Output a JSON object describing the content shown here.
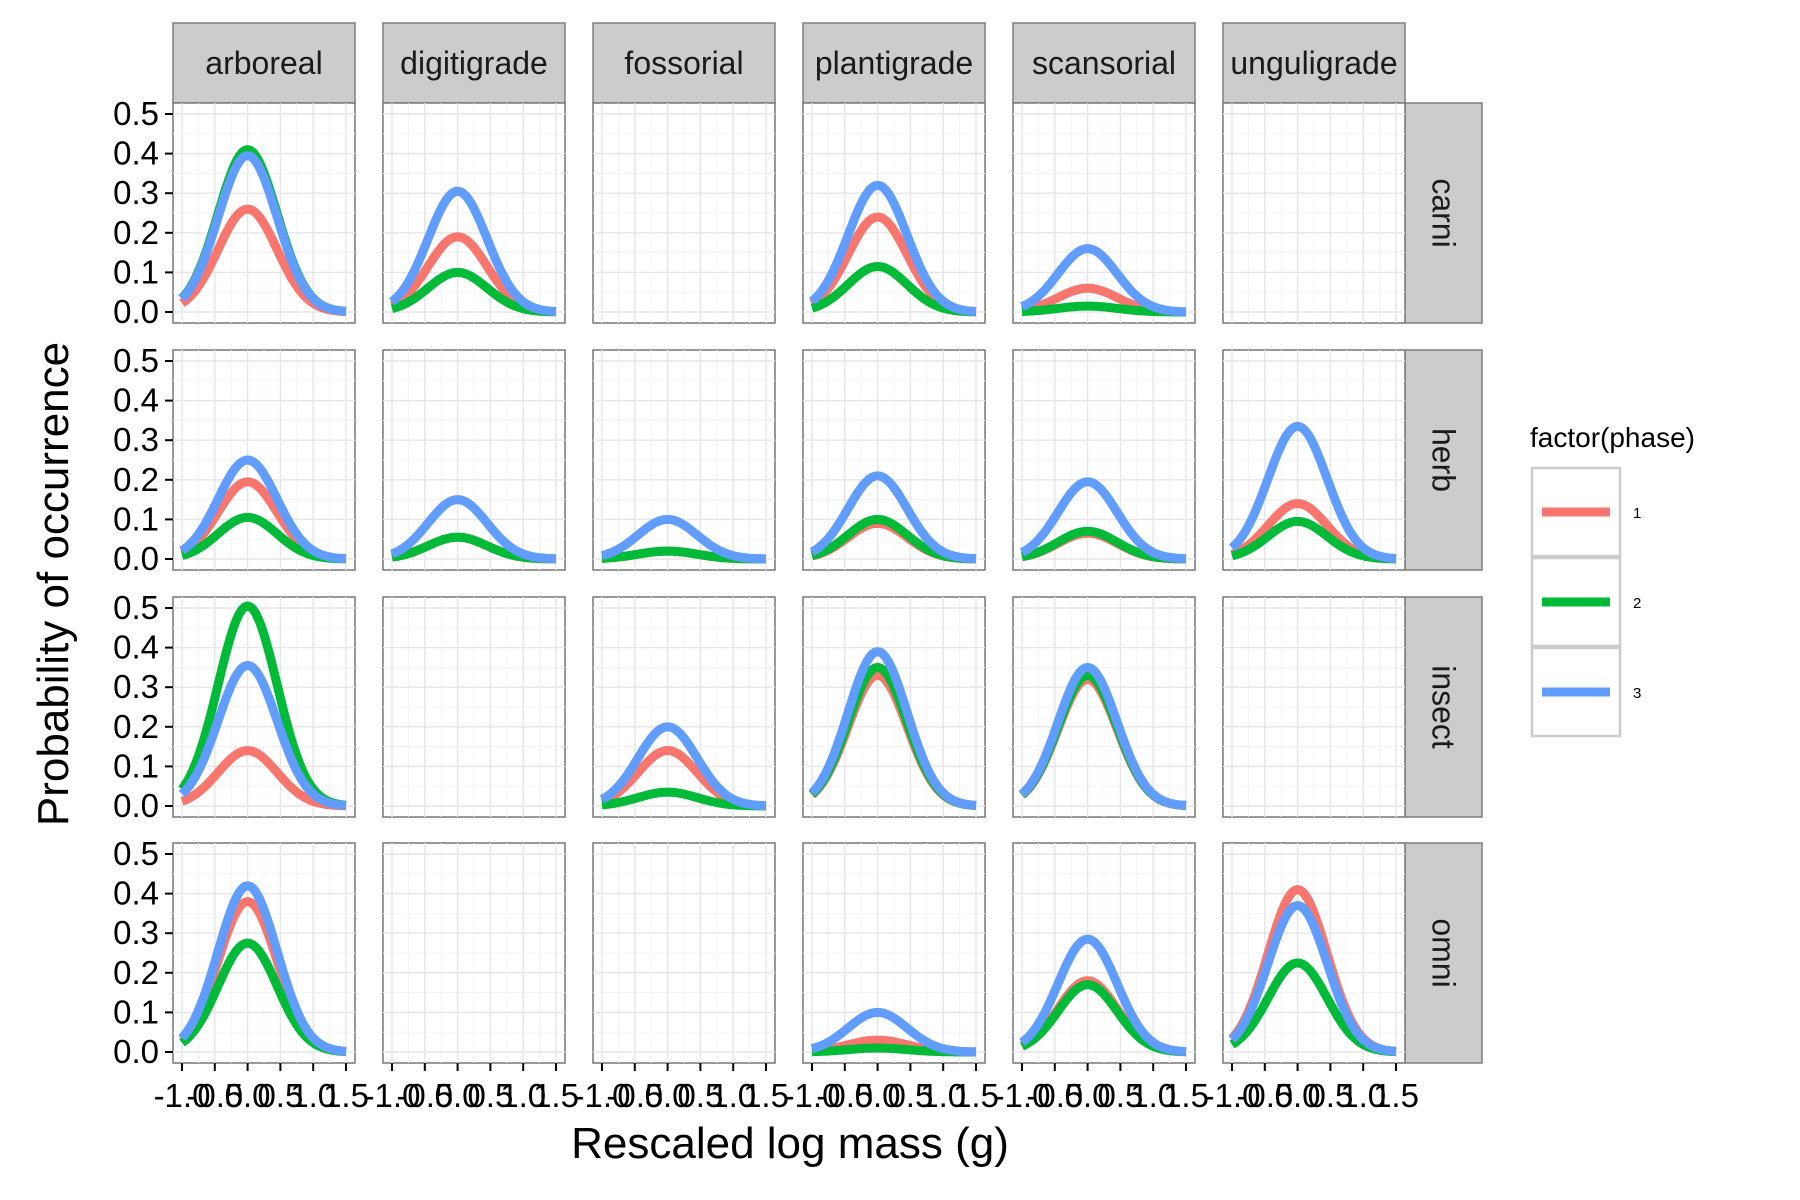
{
  "chart_data": {
    "type": "line",
    "xlabel": "Rescaled log mass (g)",
    "ylabel": "Probability of occurrence",
    "x_ticks": [
      "-1.0",
      "-0.5",
      "0.0",
      "0.5",
      "1.0",
      "1.5"
    ],
    "y_ticks": [
      "0.0",
      "0.1",
      "0.2",
      "0.3",
      "0.4",
      "0.5"
    ],
    "xlim": [
      -1.0,
      1.5
    ],
    "ylim": [
      0.0,
      0.5
    ],
    "grid": true,
    "columns": [
      "arboreal",
      "digitigrade",
      "fossorial",
      "plantigrade",
      "scansorial",
      "unguligrade"
    ],
    "rows": [
      "carni",
      "herb",
      "insect",
      "omni"
    ],
    "legend": {
      "title": "factor(phase)",
      "position": "right",
      "entries": [
        {
          "label": "1",
          "color": "#F8766D"
        },
        {
          "label": "2",
          "color": "#00BA38"
        },
        {
          "label": "3",
          "color": "#619CFF"
        }
      ]
    },
    "curve_model": "peak * exp(-((x - 0.0)^2) / (2 * 0.45^2)), sampled from x = -1.0 to 1.5",
    "series": {
      "carni": {
        "arboreal": {
          "1": 0.26,
          "2": 0.41,
          "3": 0.395
        },
        "digitigrade": {
          "1": 0.19,
          "2": 0.1,
          "3": 0.305
        },
        "plantigrade": {
          "1": 0.24,
          "2": 0.115,
          "3": 0.32
        },
        "scansorial": {
          "1": 0.06,
          "2": 0.015,
          "3": 0.16
        }
      },
      "herb": {
        "arboreal": {
          "1": 0.195,
          "2": 0.105,
          "3": 0.25
        },
        "digitigrade": {
          "1": 0.055,
          "2": 0.055,
          "3": 0.15
        },
        "fossorial": {
          "1": 0.02,
          "2": 0.02,
          "3": 0.1
        },
        "plantigrade": {
          "1": 0.09,
          "2": 0.1,
          "3": 0.21
        },
        "scansorial": {
          "1": 0.065,
          "2": 0.07,
          "3": 0.195
        },
        "unguligrade": {
          "1": 0.14,
          "2": 0.095,
          "3": 0.335
        }
      },
      "insect": {
        "arboreal": {
          "1": 0.14,
          "2": 0.505,
          "3": 0.355
        },
        "fossorial": {
          "1": 0.14,
          "2": 0.035,
          "3": 0.2
        },
        "plantigrade": {
          "1": 0.33,
          "2": 0.35,
          "3": 0.39
        },
        "scansorial": {
          "1": 0.32,
          "2": 0.33,
          "3": 0.35
        }
      },
      "omni": {
        "arboreal": {
          "1": 0.38,
          "2": 0.275,
          "3": 0.42
        },
        "plantigrade": {
          "1": 0.03,
          "2": 0.01,
          "3": 0.1
        },
        "scansorial": {
          "1": 0.18,
          "2": 0.17,
          "3": 0.285
        },
        "unguligrade": {
          "1": 0.41,
          "2": 0.225,
          "3": 0.37
        }
      }
    }
  }
}
